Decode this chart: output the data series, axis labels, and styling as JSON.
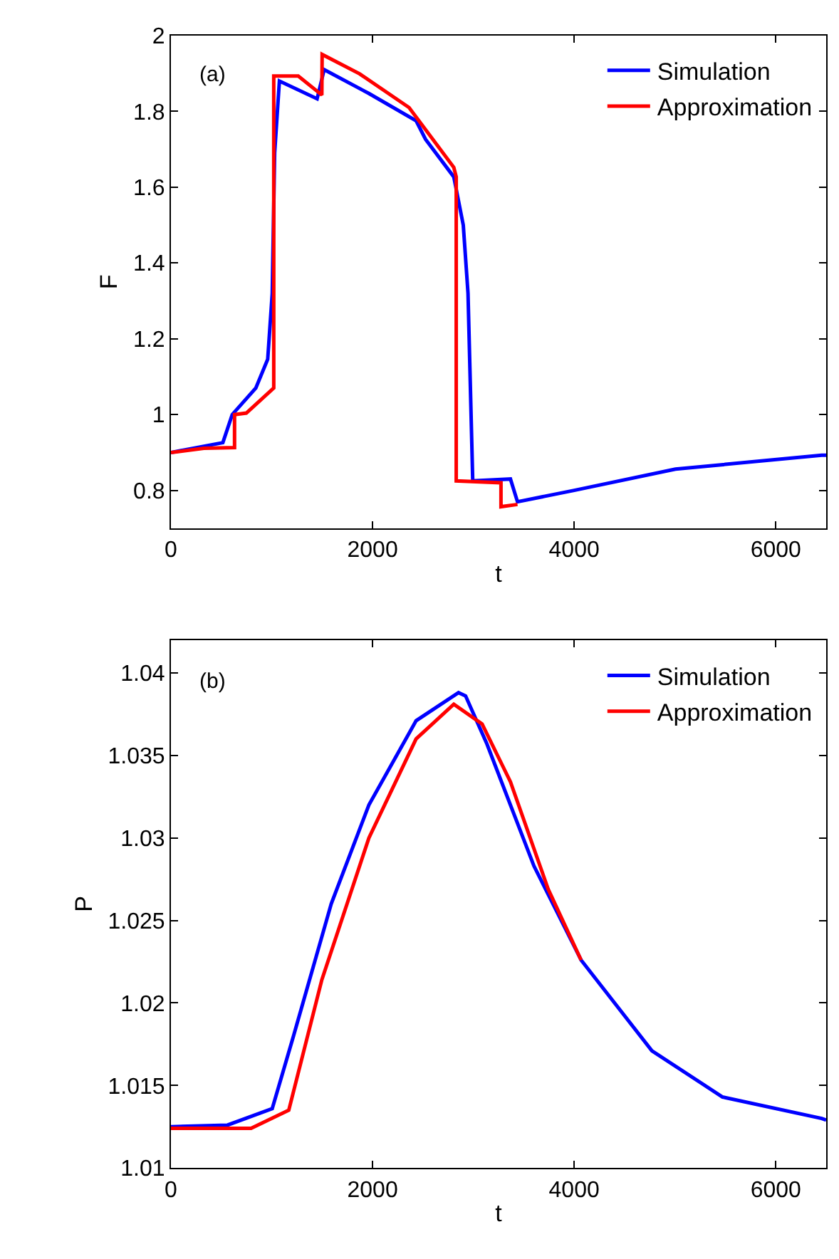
{
  "chart_data": [
    {
      "type": "line",
      "xlabel": "t",
      "ylabel": "F",
      "annotations": [
        "(a)"
      ],
      "xlim": [
        0,
        6500
      ],
      "ylim": [
        0.7,
        2
      ],
      "xticks": [
        0,
        2000,
        4000,
        6000
      ],
      "yticks": [
        0.8,
        1,
        1.2,
        1.4,
        1.6,
        1.8,
        2
      ],
      "legend": "top right",
      "marker": "none",
      "line_style": "solid",
      "series": [
        {
          "name": "Simulation",
          "color": "#0000ff",
          "x": [
            0,
            515,
            608,
            842,
            960,
            1005,
            1029,
            1076,
            1450,
            1520,
            1964,
            2432,
            2526,
            2806,
            2900,
            2947,
            2994,
            3368,
            3438,
            4000,
            5005,
            6455,
            6500
          ],
          "values": [
            0.9,
            0.926,
            1.0,
            1.07,
            1.146,
            1.32,
            1.69,
            1.88,
            1.833,
            1.91,
            1.847,
            1.775,
            1.726,
            1.627,
            1.5,
            1.32,
            0.825,
            0.83,
            0.77,
            0.8,
            0.856,
            0.893,
            0.893
          ]
        },
        {
          "name": "Approximation",
          "color": "#ff0000",
          "x": [
            0,
            327,
            631,
            631,
            748,
            1020,
            1020,
            1263,
            1497,
            1500,
            1871,
            2362,
            2806,
            2830,
            2830,
            3274,
            3274,
            3438
          ],
          "values": [
            0.9,
            0.911,
            0.913,
            1.0,
            1.004,
            1.07,
            1.893,
            1.893,
            1.843,
            1.95,
            1.899,
            1.81,
            1.652,
            1.627,
            0.825,
            0.82,
            0.757,
            0.763
          ]
        }
      ]
    },
    {
      "type": "line",
      "xlabel": "t",
      "ylabel": "P",
      "annotations": [
        "(b)"
      ],
      "xlim": [
        0,
        6500
      ],
      "ylim": [
        1.01,
        1.042
      ],
      "xticks": [
        0,
        2000,
        4000,
        6000
      ],
      "yticks": [
        1.01,
        1.015,
        1.02,
        1.025,
        1.03,
        1.035,
        1.04
      ],
      "legend": "top right",
      "marker": "none",
      "line_style": "solid",
      "series": [
        {
          "name": "Simulation",
          "color": "#0000ff",
          "x": [
            0,
            561,
            1005,
            1216,
            1590,
            1964,
            2432,
            2853,
            2923,
            3134,
            3601,
            4069,
            4771,
            5472,
            6455,
            6500
          ],
          "values": [
            1.0125,
            1.0126,
            1.0136,
            1.018,
            1.026,
            1.032,
            1.0371,
            1.0388,
            1.0386,
            1.0357,
            1.0283,
            1.0226,
            1.0171,
            1.0143,
            1.013,
            1.0129
          ]
        },
        {
          "name": "Approximation",
          "color": "#ff0000",
          "x": [
            0,
            795,
            1169,
            1497,
            1964,
            2432,
            2806,
            3087,
            3368,
            3742,
            4069
          ],
          "values": [
            1.0124,
            1.0124,
            1.0135,
            1.0214,
            1.03,
            1.036,
            1.0381,
            1.0369,
            1.0334,
            1.0269,
            1.0226
          ]
        }
      ]
    }
  ]
}
